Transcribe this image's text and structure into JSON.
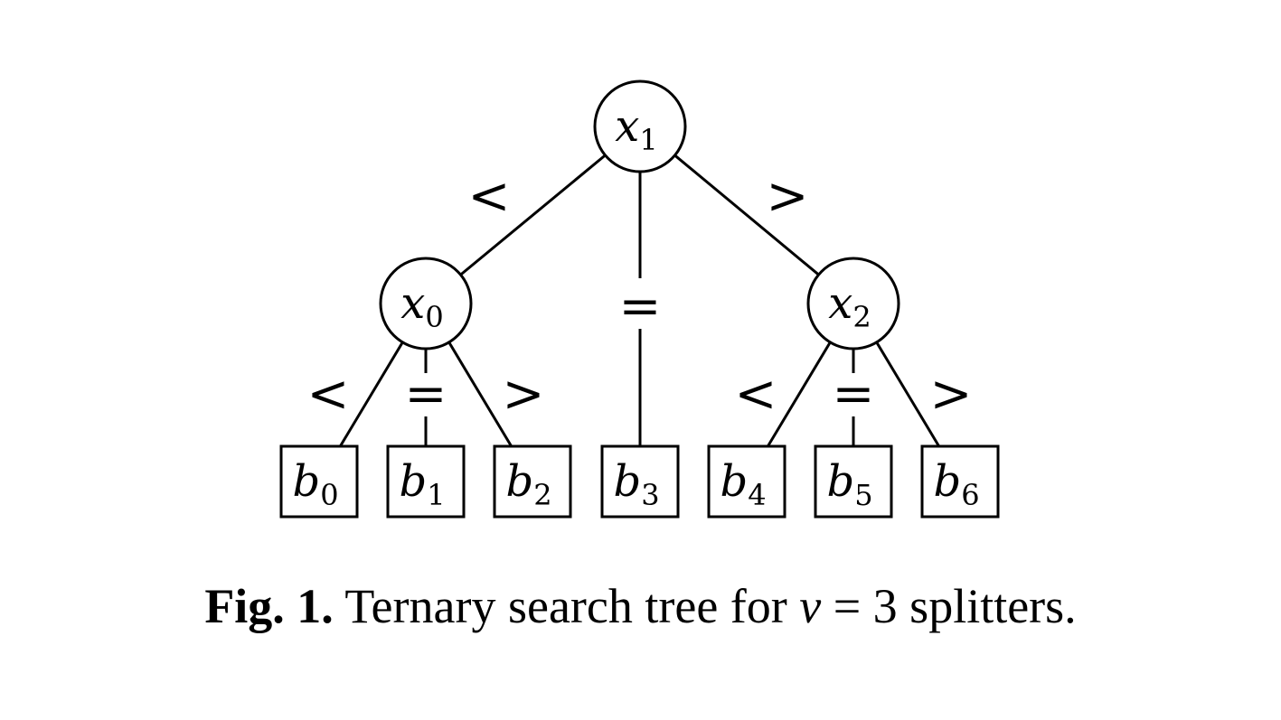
{
  "diagram": {
    "nodes": [
      {
        "id": "x1",
        "shape": "circle",
        "base": "x",
        "sub": "1"
      },
      {
        "id": "x0",
        "shape": "circle",
        "base": "x",
        "sub": "0"
      },
      {
        "id": "x2",
        "shape": "circle",
        "base": "x",
        "sub": "2"
      },
      {
        "id": "b0",
        "shape": "box",
        "base": "b",
        "sub": "0"
      },
      {
        "id": "b1",
        "shape": "box",
        "base": "b",
        "sub": "1"
      },
      {
        "id": "b2",
        "shape": "box",
        "base": "b",
        "sub": "2"
      },
      {
        "id": "b3",
        "shape": "box",
        "base": "b",
        "sub": "3"
      },
      {
        "id": "b4",
        "shape": "box",
        "base": "b",
        "sub": "4"
      },
      {
        "id": "b5",
        "shape": "box",
        "base": "b",
        "sub": "5"
      },
      {
        "id": "b6",
        "shape": "box",
        "base": "b",
        "sub": "6"
      }
    ],
    "edges": [
      {
        "from": "x1",
        "to": "x0",
        "label": "<"
      },
      {
        "from": "x1",
        "to": "b3",
        "label": "="
      },
      {
        "from": "x1",
        "to": "x2",
        "label": ">"
      },
      {
        "from": "x0",
        "to": "b0",
        "label": "<"
      },
      {
        "from": "x0",
        "to": "b1",
        "label": "="
      },
      {
        "from": "x0",
        "to": "b2",
        "label": ">"
      },
      {
        "from": "x2",
        "to": "b4",
        "label": "<"
      },
      {
        "from": "x2",
        "to": "b5",
        "label": "="
      },
      {
        "from": "x2",
        "to": "b6",
        "label": ">"
      }
    ]
  },
  "caption": {
    "label": "Fig. 1.",
    "text_before": "Ternary search tree for",
    "variable": "v",
    "text_after": "= 3 splitters."
  }
}
